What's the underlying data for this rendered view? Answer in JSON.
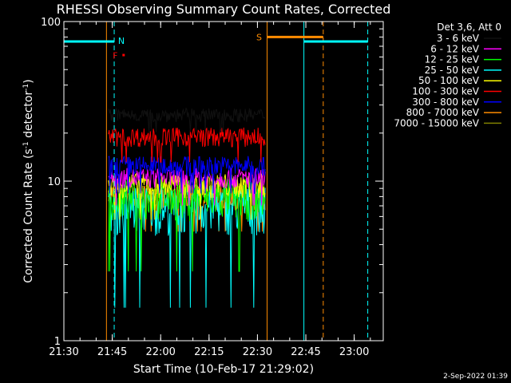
{
  "chart_data": {
    "type": "line",
    "title": "RHESSI Observing Summary Count Rates, Corrected",
    "xlabel": "Start Time (10-Feb-17 21:29:02)",
    "ylabel_main": "Corrected Count Rate (s",
    "ylabel_sup1": "-1",
    "ylabel_mid": " detector",
    "ylabel_sup2": "-1",
    "ylabel_end": ")",
    "y_scale": "log",
    "ylim": [
      1,
      100
    ],
    "xlim_minutes": [
      21.5,
      23.15
    ],
    "x_ticks": [
      {
        "label": "21:30",
        "h": 21.5
      },
      {
        "label": "21:45",
        "h": 21.75
      },
      {
        "label": "22:00",
        "h": 22.0
      },
      {
        "label": "22:15",
        "h": 22.25
      },
      {
        "label": "22:30",
        "h": 22.5
      },
      {
        "label": "22:45",
        "h": 22.75
      },
      {
        "label": "23:00",
        "h": 23.0
      }
    ],
    "y_ticks": [
      {
        "label": "1",
        "v": 1
      },
      {
        "label": "10",
        "v": 10
      },
      {
        "label": "100",
        "v": 100
      }
    ],
    "legend": {
      "header": "Det 3,6, Att 0",
      "placement": "right",
      "entries": [
        {
          "name": "3 - 6 keV",
          "color": "#000000"
        },
        {
          "name": "6 - 12 keV",
          "color": "#ff00ff"
        },
        {
          "name": "12 - 25 keV",
          "color": "#00ff00"
        },
        {
          "name": "25 - 50 keV",
          "color": "#00ffff"
        },
        {
          "name": "50 - 100 keV",
          "color": "#ffff00"
        },
        {
          "name": "100 - 300 keV",
          "color": "#ff0000"
        },
        {
          "name": "300 - 800 keV",
          "color": "#0000ff"
        },
        {
          "name": "800 - 7000 keV",
          "color": "#ff8c00"
        },
        {
          "name": "7000 - 15000 keV",
          "color": "#808000"
        }
      ]
    },
    "data_window_hours": [
      21.73,
      22.54
    ],
    "series": [
      {
        "name": "3 - 6 keV",
        "level": 26,
        "noise": 0.1,
        "color": "#000000"
      },
      {
        "name": "100 - 300 keV",
        "level": 19,
        "noise": 0.14,
        "color": "#ff0000"
      },
      {
        "name": "300 - 800 keV",
        "level": 12.5,
        "noise": 0.15,
        "color": "#0000ff"
      },
      {
        "name": "6 - 12 keV",
        "level": 10.5,
        "noise": 0.15,
        "color": "#ff00ff"
      },
      {
        "name": "50 - 100 keV",
        "level": 9.5,
        "noise": 0.18,
        "color": "#ffff00"
      },
      {
        "name": "12 - 25 keV",
        "level": 8.0,
        "noise": 0.3,
        "color": "#00ff00"
      },
      {
        "name": "25 - 50 keV",
        "level": 7.0,
        "noise": 0.35,
        "color": "#00ffff"
      },
      {
        "name": "800 - 7000 keV",
        "level": 8.0,
        "noise": 0.18,
        "color": "#ff8c00"
      },
      {
        "name": "7000 - 15000 keV",
        "level": 8.5,
        "noise": 0.12,
        "color": "#808000"
      }
    ],
    "markers": {
      "night": [
        {
          "label": "N",
          "start": 21.5,
          "end": 21.76,
          "color": "#00ffff"
        },
        {
          "label": "",
          "start": 22.74,
          "end": 23.07,
          "color": "#00ffff"
        }
      ],
      "saa": [
        {
          "label": "S",
          "start": 22.55,
          "end": 22.84,
          "color": "#ff8c00"
        }
      ],
      "flare": {
        "label": "F",
        "h": 21.79,
        "color": "#ff0000"
      },
      "vlines_cyan_solid": [
        21.5,
        22.74
      ],
      "vlines_cyan_dashed": [
        21.76,
        23.07
      ],
      "vlines_orange_solid": [
        21.72,
        22.55
      ],
      "vlines_orange_dashed": [
        22.84
      ]
    }
  },
  "footer": {
    "date": "2-Sep-2022 01:39"
  }
}
